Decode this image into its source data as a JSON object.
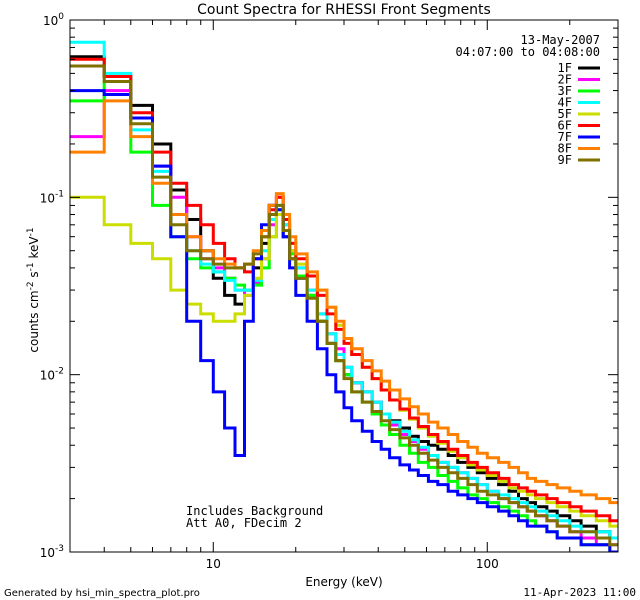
{
  "chart_data": {
    "type": "line",
    "title": "Count Spectra for RHESSI Front Segments",
    "xlabel": "Energy (keV)",
    "ylabel": "counts cm",
    "ylabel_full": "counts cm^-2 s^-1 keV^-1",
    "x_scale": "log",
    "y_scale": "log",
    "xlim": [
      3,
      300
    ],
    "ylim": [
      0.001,
      1
    ],
    "x_ticks": [
      {
        "value": 10,
        "label": "10"
      },
      {
        "value": 100,
        "label": "100"
      }
    ],
    "y_ticks": [
      {
        "value": 0.001,
        "base": "10",
        "exp": "-3"
      },
      {
        "value": 0.01,
        "base": "10",
        "exp": "-2"
      },
      {
        "value": 0.1,
        "base": "10",
        "exp": "-1"
      },
      {
        "value": 1,
        "base": "10",
        "exp": "0"
      }
    ],
    "attenuator_region_end_kev": 3,
    "date": "13-May-2007",
    "time_range": "04:07:00 to 04:08:00",
    "annotations": [
      "Includes Background",
      "Att A0, FDecim 2"
    ],
    "energy_edges_kev": [
      3,
      4,
      5,
      6,
      7,
      8,
      9,
      10,
      11,
      12,
      13,
      14,
      15,
      16,
      17,
      18,
      19,
      20,
      22,
      24,
      26,
      28,
      30,
      32,
      35,
      38,
      41,
      44,
      48,
      52,
      56,
      61,
      66,
      72,
      78,
      85,
      92,
      100,
      110,
      120,
      130,
      140,
      150,
      165,
      180,
      200,
      220,
      250,
      280,
      300
    ],
    "series": [
      {
        "name": "1F",
        "color": "#000000",
        "values": [
          0.62,
          0.48,
          0.33,
          0.2,
          0.11,
          0.075,
          0.05,
          0.035,
          0.028,
          0.025,
          0.03,
          0.04,
          0.055,
          0.09,
          0.08,
          0.06,
          0.045,
          0.035,
          0.028,
          0.02,
          0.015,
          0.012,
          0.01,
          0.009,
          0.008,
          0.007,
          0.006,
          0.0055,
          0.005,
          0.0045,
          0.0042,
          0.004,
          0.0038,
          0.0035,
          0.0032,
          0.003,
          0.0028,
          0.0026,
          0.0024,
          0.0022,
          0.002,
          0.0019,
          0.0018,
          0.0017,
          0.0016,
          0.0015,
          0.0014,
          0.0013,
          0.0012
        ]
      },
      {
        "name": "2F",
        "color": "#ff00ff",
        "values": [
          0.22,
          0.4,
          0.28,
          0.15,
          0.1,
          0.06,
          0.045,
          0.04,
          0.035,
          0.03,
          0.028,
          0.033,
          0.045,
          0.07,
          0.1,
          0.07,
          0.05,
          0.04,
          0.03,
          0.022,
          0.017,
          0.014,
          0.011,
          0.009,
          0.008,
          0.007,
          0.006,
          0.0052,
          0.0046,
          0.0042,
          0.0038,
          0.0035,
          0.0032,
          0.003,
          0.0028,
          0.0026,
          0.0024,
          0.0022,
          0.002,
          0.0019,
          0.0018,
          0.0017,
          0.0016,
          0.0015,
          0.0014,
          0.0013,
          0.0012,
          0.0011,
          0.0011
        ]
      },
      {
        "name": "3F",
        "color": "#00ff00",
        "values": [
          0.35,
          0.45,
          0.18,
          0.09,
          0.06,
          0.045,
          0.04,
          0.038,
          0.035,
          0.032,
          0.03,
          0.032,
          0.04,
          0.06,
          0.085,
          0.065,
          0.048,
          0.036,
          0.028,
          0.02,
          0.015,
          0.012,
          0.01,
          0.008,
          0.007,
          0.006,
          0.0052,
          0.0046,
          0.004,
          0.0036,
          0.0032,
          0.003,
          0.0027,
          0.0025,
          0.0023,
          0.0021,
          0.002,
          0.0019,
          0.0018,
          0.0017,
          0.0016,
          0.0015,
          0.0014,
          0.0013,
          0.0012,
          0.0012,
          0.0011,
          0.0011,
          0.001
        ]
      },
      {
        "name": "4F",
        "color": "#00ffff",
        "values": [
          0.75,
          0.5,
          0.24,
          0.14,
          0.08,
          0.05,
          0.042,
          0.038,
          0.034,
          0.03,
          0.03,
          0.034,
          0.05,
          0.075,
          0.09,
          0.07,
          0.05,
          0.04,
          0.03,
          0.022,
          0.017,
          0.013,
          0.011,
          0.009,
          0.008,
          0.007,
          0.006,
          0.0054,
          0.0048,
          0.0043,
          0.0039,
          0.0035,
          0.0032,
          0.003,
          0.0028,
          0.0026,
          0.0024,
          0.0022,
          0.0021,
          0.002,
          0.0019,
          0.0018,
          0.0017,
          0.0016,
          0.0015,
          0.0014,
          0.0013,
          0.0013,
          0.0012
        ]
      },
      {
        "name": "5F",
        "color": "#ccdd00",
        "values": [
          0.1,
          0.07,
          0.055,
          0.045,
          0.03,
          0.025,
          0.022,
          0.02,
          0.02,
          0.022,
          0.028,
          0.035,
          0.045,
          0.06,
          0.08,
          0.065,
          0.05,
          0.042,
          0.036,
          0.03,
          0.024,
          0.019,
          0.016,
          0.013,
          0.011,
          0.0095,
          0.0082,
          0.0072,
          0.0063,
          0.0056,
          0.005,
          0.0045,
          0.0041,
          0.0037,
          0.0034,
          0.0031,
          0.0029,
          0.0027,
          0.0025,
          0.0023,
          0.0022,
          0.0021,
          0.002,
          0.0019,
          0.0018,
          0.0017,
          0.0016,
          0.0015,
          0.0014
        ]
      },
      {
        "name": "6F",
        "color": "#ff0000",
        "values": [
          0.6,
          0.48,
          0.3,
          0.18,
          0.12,
          0.09,
          0.07,
          0.055,
          0.045,
          0.04,
          0.038,
          0.045,
          0.06,
          0.085,
          0.1,
          0.075,
          0.055,
          0.045,
          0.036,
          0.028,
          0.022,
          0.018,
          0.015,
          0.013,
          0.011,
          0.0095,
          0.0082,
          0.0072,
          0.0064,
          0.0057,
          0.0051,
          0.0046,
          0.0042,
          0.0038,
          0.0035,
          0.0032,
          0.003,
          0.0028,
          0.0026,
          0.0024,
          0.0023,
          0.0022,
          0.0021,
          0.002,
          0.0019,
          0.0018,
          0.0017,
          0.0016,
          0.0015
        ]
      },
      {
        "name": "7F",
        "color": "#0000ff",
        "values": [
          0.4,
          0.38,
          0.28,
          0.15,
          0.06,
          0.02,
          0.012,
          0.008,
          0.005,
          0.0035,
          0.02,
          0.045,
          0.07,
          0.09,
          0.085,
          0.06,
          0.04,
          0.028,
          0.02,
          0.014,
          0.01,
          0.008,
          0.0065,
          0.0055,
          0.0048,
          0.0042,
          0.0038,
          0.0034,
          0.0031,
          0.0029,
          0.0027,
          0.0025,
          0.0024,
          0.0022,
          0.0021,
          0.002,
          0.0019,
          0.0018,
          0.0017,
          0.0016,
          0.0015,
          0.0014,
          0.0014,
          0.0013,
          0.0012,
          0.0012,
          0.0011,
          0.0011,
          0.001
        ]
      },
      {
        "name": "8F",
        "color": "#ff8000",
        "values": [
          0.18,
          0.35,
          0.22,
          0.12,
          0.08,
          0.06,
          0.05,
          0.045,
          0.042,
          0.04,
          0.042,
          0.05,
          0.065,
          0.09,
          0.105,
          0.08,
          0.06,
          0.048,
          0.038,
          0.03,
          0.024,
          0.02,
          0.016,
          0.014,
          0.012,
          0.0105,
          0.0092,
          0.0082,
          0.0073,
          0.0066,
          0.006,
          0.0054,
          0.005,
          0.0046,
          0.0042,
          0.0039,
          0.0036,
          0.0034,
          0.0032,
          0.003,
          0.0028,
          0.0026,
          0.0025,
          0.0024,
          0.0023,
          0.0022,
          0.0021,
          0.002,
          0.0019
        ]
      },
      {
        "name": "9F",
        "color": "#807000",
        "values": [
          0.55,
          0.45,
          0.26,
          0.13,
          0.07,
          0.05,
          0.045,
          0.042,
          0.04,
          0.04,
          0.042,
          0.048,
          0.06,
          0.08,
          0.09,
          0.065,
          0.045,
          0.035,
          0.027,
          0.02,
          0.015,
          0.012,
          0.0095,
          0.008,
          0.007,
          0.0062,
          0.0055,
          0.0049,
          0.0044,
          0.004,
          0.0036,
          0.0033,
          0.003,
          0.0028,
          0.0026,
          0.0024,
          0.0022,
          0.0021,
          0.002,
          0.0019,
          0.0018,
          0.0017,
          0.0016,
          0.0015,
          0.0014,
          0.0013,
          0.0013,
          0.0012,
          0.0011
        ]
      }
    ]
  },
  "footer": {
    "generated_by": "Generated by hsi_min_spectra_plot.pro",
    "timestamp": "11-Apr-2023 11:00"
  }
}
